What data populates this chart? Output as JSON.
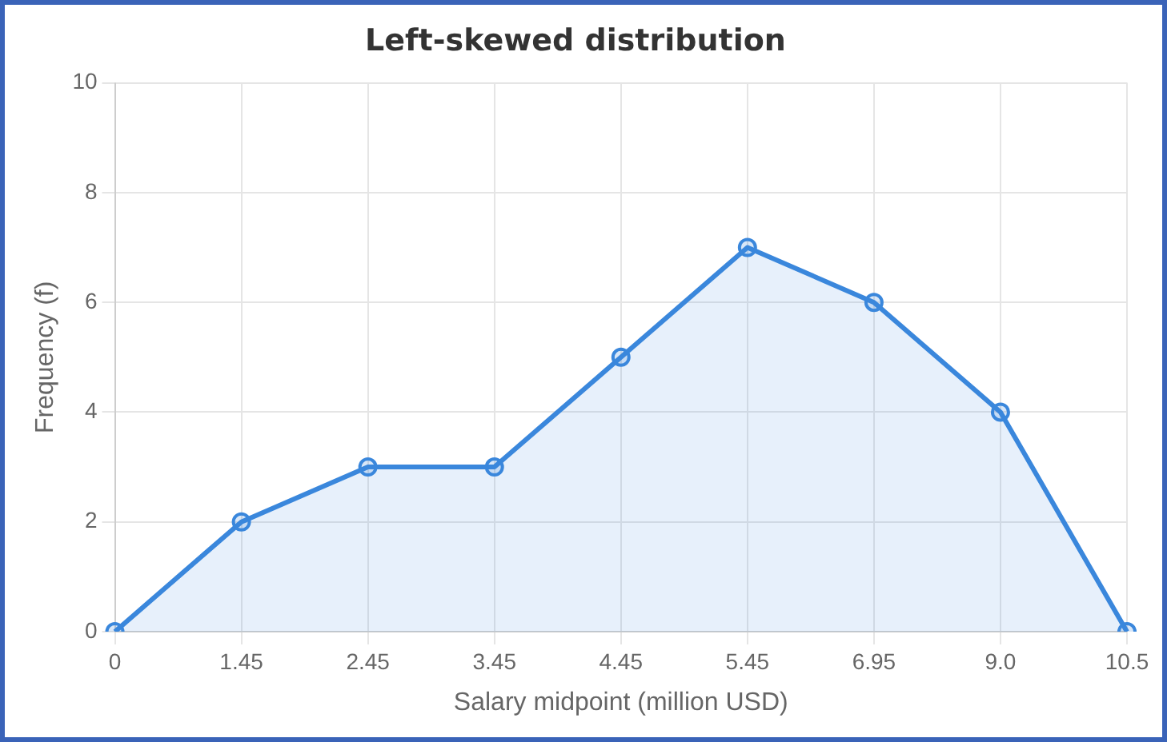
{
  "chart_data": {
    "type": "area",
    "title": "Left-skewed distribution",
    "xlabel": "Salary midpoint (million USD)",
    "ylabel": "Frequency (f)",
    "categories": [
      "0",
      "1.45",
      "2.45",
      "3.45",
      "4.45",
      "5.45",
      "6.95",
      "9.0",
      "10.5"
    ],
    "series": [
      {
        "color": "#3a87dc",
        "values": [
          0,
          2,
          3,
          3,
          5,
          7,
          6,
          4,
          0
        ]
      }
    ],
    "ylim": [
      0,
      10
    ],
    "yticks": [
      0,
      2,
      4,
      6,
      8,
      10
    ],
    "grid": true,
    "marker": "circle",
    "line_style": "solid"
  }
}
